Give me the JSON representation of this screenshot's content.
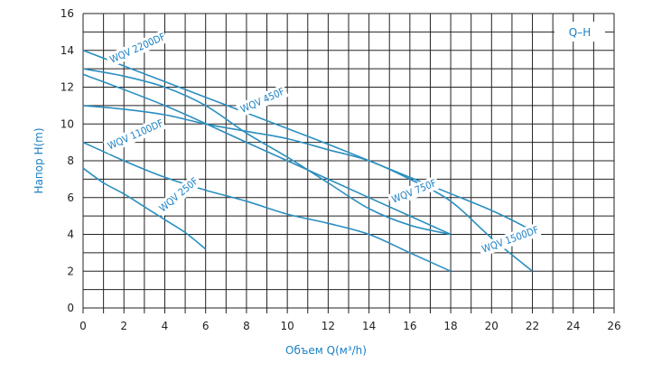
{
  "chart_data": {
    "type": "line",
    "title": "",
    "legend_box": "Q–H",
    "xlabel": "Объем Q(м³/h)",
    "ylabel": "Напор H(m)",
    "xlim": [
      0,
      26
    ],
    "ylim": [
      0,
      16
    ],
    "x_ticks": [
      0,
      2,
      4,
      6,
      8,
      10,
      12,
      14,
      16,
      18,
      20,
      22,
      24,
      26
    ],
    "y_ticks": [
      0,
      2,
      4,
      6,
      8,
      10,
      12,
      14,
      16
    ],
    "grid": true,
    "colors": {
      "series": "#2a8fc0",
      "grid": "#222222",
      "text": "#1a7fc4"
    },
    "series": [
      {
        "name": "WQV 2200DF",
        "x": [
          0,
          4,
          8,
          12,
          16,
          20,
          22
        ],
        "y": [
          14,
          12.3,
          10.6,
          8.9,
          7.1,
          5.3,
          4.2
        ]
      },
      {
        "name": "WQV 450F",
        "x": [
          0,
          2,
          4,
          6,
          8,
          10,
          12,
          14,
          16,
          18
        ],
        "y": [
          13,
          12.6,
          12,
          11,
          9.5,
          8.2,
          6.8,
          5.4,
          4.5,
          4
        ]
      },
      {
        "name": "WQV 750F",
        "x": [
          0,
          4,
          8,
          10,
          14,
          18
        ],
        "y": [
          12.7,
          11,
          9,
          8,
          6,
          4
        ]
      },
      {
        "name": "WQV 1500DF",
        "x": [
          0,
          2,
          4,
          6,
          8,
          10,
          12,
          14,
          16,
          18,
          20,
          22
        ],
        "y": [
          11,
          10.8,
          10.5,
          10,
          9.6,
          9.2,
          8.6,
          8,
          7,
          5.8,
          3.8,
          2
        ]
      },
      {
        "name": "WQV 1100DF",
        "x": [
          0,
          2,
          4,
          6,
          8,
          10,
          12,
          14,
          16,
          18
        ],
        "y": [
          9,
          8,
          7.1,
          6.4,
          5.8,
          5.1,
          4.6,
          4,
          3,
          2
        ]
      },
      {
        "name": "WQV 250F",
        "x": [
          0,
          1,
          2,
          3,
          4,
          5,
          6
        ],
        "y": [
          7.6,
          6.8,
          6.2,
          5.5,
          4.8,
          4.1,
          3.2
        ]
      }
    ],
    "labels": [
      {
        "text": "WQV 2200DF",
        "x": 1.4,
        "y": 13.3,
        "angle": -24
      },
      {
        "text": "WQV 450F",
        "x": 7.8,
        "y": 10.6,
        "angle": -24
      },
      {
        "text": "WQV 1100DF",
        "x": 1.3,
        "y": 8.6,
        "angle": -24
      },
      {
        "text": "WQV 250F",
        "x": 3.9,
        "y": 5.2,
        "angle": -40
      },
      {
        "text": "WQV 750F",
        "x": 15.2,
        "y": 5.7,
        "angle": -22
      },
      {
        "text": "WQV 1500DF",
        "x": 19.6,
        "y": 3.0,
        "angle": -20
      }
    ]
  }
}
